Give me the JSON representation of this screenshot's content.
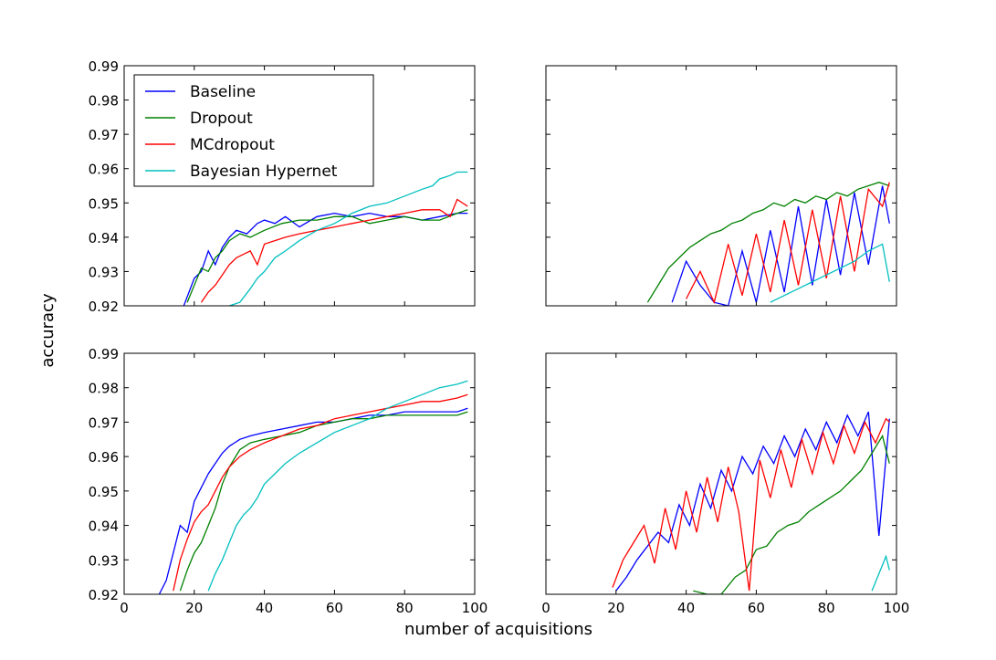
{
  "figure": {
    "ylabel": "accuracy",
    "xlabel": "number of acquisitions"
  },
  "legend": {
    "placement": "upper-left (top-left subplot)",
    "entries": [
      {
        "label": "Baseline",
        "color": "#0000ff"
      },
      {
        "label": "Dropout",
        "color": "#008000"
      },
      {
        "label": "MCdropout",
        "color": "#ff0000"
      },
      {
        "label": "Bayesian Hypernet",
        "color": "#00bfbf"
      }
    ]
  },
  "chart_data": [
    {
      "type": "line",
      "panel": "top-left",
      "xlim": [
        0,
        100
      ],
      "ylim": [
        0.92,
        0.99
      ],
      "yticks": [
        "0.92",
        "0.93",
        "0.94",
        "0.95",
        "0.96",
        "0.97",
        "0.98",
        "0.99"
      ],
      "xticks": [],
      "series": [
        {
          "name": "Baseline",
          "color": "#0000ff",
          "x": [
            17,
            20,
            22,
            24,
            26,
            28,
            30,
            32,
            35,
            38,
            40,
            43,
            46,
            50,
            55,
            60,
            65,
            70,
            75,
            80,
            85,
            90,
            95,
            98
          ],
          "y": [
            0.92,
            0.928,
            0.93,
            0.936,
            0.932,
            0.937,
            0.94,
            0.942,
            0.941,
            0.944,
            0.945,
            0.944,
            0.946,
            0.943,
            0.946,
            0.947,
            0.946,
            0.947,
            0.946,
            0.946,
            0.945,
            0.946,
            0.947,
            0.947
          ]
        },
        {
          "name": "Dropout",
          "color": "#008000",
          "x": [
            18,
            20,
            22,
            24,
            26,
            28,
            30,
            33,
            36,
            40,
            45,
            50,
            55,
            60,
            65,
            70,
            75,
            80,
            85,
            90,
            95,
            98
          ],
          "y": [
            0.921,
            0.926,
            0.931,
            0.93,
            0.934,
            0.936,
            0.939,
            0.941,
            0.94,
            0.942,
            0.944,
            0.945,
            0.945,
            0.946,
            0.946,
            0.944,
            0.945,
            0.946,
            0.945,
            0.945,
            0.947,
            0.948
          ]
        },
        {
          "name": "MCdropout",
          "color": "#ff0000",
          "x": [
            22,
            24,
            26,
            28,
            30,
            32,
            34,
            36,
            38,
            40,
            43,
            46,
            50,
            55,
            60,
            65,
            70,
            75,
            80,
            85,
            90,
            93,
            95,
            98
          ],
          "y": [
            0.921,
            0.924,
            0.926,
            0.929,
            0.932,
            0.934,
            0.935,
            0.936,
            0.932,
            0.938,
            0.939,
            0.94,
            0.941,
            0.942,
            0.943,
            0.944,
            0.945,
            0.946,
            0.947,
            0.948,
            0.948,
            0.946,
            0.951,
            0.949
          ]
        },
        {
          "name": "Bayesian Hypernet",
          "color": "#00bfbf",
          "x": [
            30,
            33,
            36,
            38,
            40,
            43,
            46,
            50,
            55,
            60,
            65,
            70,
            75,
            80,
            85,
            88,
            90,
            93,
            95,
            98
          ],
          "y": [
            0.92,
            0.921,
            0.925,
            0.928,
            0.93,
            0.934,
            0.936,
            0.939,
            0.942,
            0.944,
            0.947,
            0.949,
            0.95,
            0.952,
            0.954,
            0.955,
            0.957,
            0.958,
            0.959,
            0.959
          ]
        }
      ]
    },
    {
      "type": "line",
      "panel": "top-right",
      "xlim": [
        0,
        100
      ],
      "ylim": [
        0.92,
        0.99
      ],
      "yticks": [],
      "xticks": [],
      "series": [
        {
          "name": "Baseline",
          "color": "#0000ff",
          "x": [
            36,
            40,
            44,
            48,
            52,
            56,
            60,
            64,
            68,
            72,
            76,
            80,
            84,
            88,
            92,
            96,
            98
          ],
          "y": [
            0.921,
            0.933,
            0.926,
            0.921,
            0.92,
            0.936,
            0.921,
            0.942,
            0.924,
            0.949,
            0.926,
            0.951,
            0.929,
            0.953,
            0.932,
            0.955,
            0.944
          ]
        },
        {
          "name": "Dropout",
          "color": "#008000",
          "x": [
            29,
            32,
            35,
            38,
            41,
            44,
            47,
            50,
            53,
            56,
            59,
            62,
            65,
            68,
            71,
            74,
            77,
            80,
            83,
            86,
            89,
            92,
            95,
            98
          ],
          "y": [
            0.921,
            0.926,
            0.931,
            0.934,
            0.937,
            0.939,
            0.941,
            0.942,
            0.944,
            0.945,
            0.947,
            0.948,
            0.95,
            0.949,
            0.951,
            0.95,
            0.952,
            0.951,
            0.953,
            0.952,
            0.954,
            0.955,
            0.956,
            0.955
          ]
        },
        {
          "name": "MCdropout",
          "color": "#ff0000",
          "x": [
            40,
            44,
            48,
            52,
            56,
            60,
            64,
            68,
            72,
            76,
            80,
            84,
            88,
            92,
            96,
            98
          ],
          "y": [
            0.922,
            0.93,
            0.921,
            0.938,
            0.923,
            0.941,
            0.924,
            0.945,
            0.926,
            0.948,
            0.928,
            0.952,
            0.93,
            0.954,
            0.949,
            0.956
          ]
        },
        {
          "name": "Bayesian Hypernet",
          "color": "#00bfbf",
          "x": [
            64,
            68,
            72,
            76,
            80,
            84,
            88,
            92,
            96,
            98
          ],
          "y": [
            0.921,
            0.923,
            0.925,
            0.927,
            0.929,
            0.931,
            0.933,
            0.936,
            0.938,
            0.927
          ]
        }
      ]
    },
    {
      "type": "line",
      "panel": "bottom-left",
      "xlim": [
        0,
        100
      ],
      "ylim": [
        0.92,
        0.99
      ],
      "yticks": [
        "0.92",
        "0.93",
        "0.94",
        "0.95",
        "0.96",
        "0.97",
        "0.98",
        "0.99"
      ],
      "xticks": [
        "0",
        "20",
        "40",
        "60",
        "80",
        "100"
      ],
      "series": [
        {
          "name": "Baseline",
          "color": "#0000ff",
          "x": [
            10,
            12,
            14,
            16,
            18,
            20,
            22,
            24,
            26,
            28,
            30,
            33,
            36,
            40,
            45,
            50,
            55,
            60,
            65,
            70,
            75,
            80,
            85,
            90,
            95,
            98
          ],
          "y": [
            0.92,
            0.924,
            0.932,
            0.94,
            0.938,
            0.947,
            0.951,
            0.955,
            0.958,
            0.961,
            0.963,
            0.965,
            0.966,
            0.967,
            0.968,
            0.969,
            0.97,
            0.97,
            0.971,
            0.972,
            0.972,
            0.973,
            0.973,
            0.973,
            0.973,
            0.974
          ]
        },
        {
          "name": "Dropout",
          "color": "#008000",
          "x": [
            16,
            18,
            20,
            22,
            24,
            26,
            28,
            30,
            33,
            36,
            40,
            45,
            50,
            55,
            60,
            65,
            70,
            75,
            80,
            85,
            90,
            95,
            98
          ],
          "y": [
            0.921,
            0.927,
            0.932,
            0.935,
            0.94,
            0.945,
            0.952,
            0.957,
            0.962,
            0.964,
            0.965,
            0.966,
            0.967,
            0.969,
            0.97,
            0.971,
            0.971,
            0.972,
            0.972,
            0.972,
            0.972,
            0.972,
            0.973
          ]
        },
        {
          "name": "MCdropout",
          "color": "#ff0000",
          "x": [
            14,
            16,
            18,
            20,
            22,
            24,
            26,
            28,
            30,
            33,
            36,
            40,
            45,
            50,
            55,
            60,
            65,
            70,
            75,
            80,
            85,
            90,
            95,
            98
          ],
          "y": [
            0.921,
            0.93,
            0.936,
            0.941,
            0.944,
            0.946,
            0.95,
            0.954,
            0.957,
            0.96,
            0.962,
            0.964,
            0.966,
            0.968,
            0.969,
            0.971,
            0.972,
            0.973,
            0.974,
            0.975,
            0.976,
            0.976,
            0.977,
            0.978
          ]
        },
        {
          "name": "Bayesian Hypernet",
          "color": "#00bfbf",
          "x": [
            24,
            26,
            28,
            30,
            32,
            34,
            36,
            38,
            40,
            43,
            46,
            50,
            55,
            60,
            65,
            70,
            75,
            80,
            85,
            90,
            95,
            98
          ],
          "y": [
            0.921,
            0.926,
            0.93,
            0.935,
            0.94,
            0.943,
            0.945,
            0.948,
            0.952,
            0.955,
            0.958,
            0.961,
            0.964,
            0.967,
            0.969,
            0.971,
            0.974,
            0.976,
            0.978,
            0.98,
            0.981,
            0.982
          ]
        }
      ]
    },
    {
      "type": "line",
      "panel": "bottom-right",
      "xlim": [
        0,
        100
      ],
      "ylim": [
        0.92,
        0.99
      ],
      "yticks": [],
      "xticks": [
        "0",
        "20",
        "40",
        "60",
        "80",
        "100"
      ],
      "series": [
        {
          "name": "Baseline",
          "color": "#0000ff",
          "x": [
            20,
            23,
            26,
            29,
            32,
            35,
            38,
            41,
            44,
            47,
            50,
            53,
            56,
            59,
            62,
            65,
            68,
            71,
            74,
            77,
            80,
            83,
            86,
            89,
            92,
            95,
            98
          ],
          "y": [
            0.921,
            0.925,
            0.93,
            0.934,
            0.938,
            0.935,
            0.946,
            0.94,
            0.952,
            0.945,
            0.956,
            0.95,
            0.96,
            0.955,
            0.963,
            0.958,
            0.966,
            0.96,
            0.968,
            0.962,
            0.97,
            0.964,
            0.972,
            0.966,
            0.973,
            0.937,
            0.971
          ]
        },
        {
          "name": "Dropout",
          "color": "#008000",
          "x": [
            42,
            46,
            50,
            54,
            57,
            60,
            63,
            66,
            69,
            72,
            75,
            78,
            81,
            84,
            87,
            90,
            93,
            96,
            98
          ],
          "y": [
            0.921,
            0.92,
            0.92,
            0.925,
            0.927,
            0.933,
            0.934,
            0.938,
            0.94,
            0.941,
            0.944,
            0.946,
            0.948,
            0.95,
            0.953,
            0.956,
            0.961,
            0.966,
            0.958
          ]
        },
        {
          "name": "MCdropout",
          "color": "#ff0000",
          "x": [
            19,
            22,
            25,
            28,
            31,
            34,
            37,
            40,
            43,
            46,
            49,
            52,
            55,
            58,
            61,
            64,
            67,
            70,
            73,
            76,
            79,
            82,
            85,
            88,
            91,
            94,
            97,
            98
          ],
          "y": [
            0.922,
            0.93,
            0.935,
            0.94,
            0.929,
            0.945,
            0.933,
            0.95,
            0.938,
            0.954,
            0.941,
            0.957,
            0.944,
            0.921,
            0.959,
            0.948,
            0.962,
            0.951,
            0.965,
            0.955,
            0.967,
            0.958,
            0.969,
            0.961,
            0.97,
            0.964,
            0.971,
            0.97
          ]
        },
        {
          "name": "Bayesian Hypernet",
          "color": "#00bfbf",
          "x": [
            93,
            95,
            97,
            98
          ],
          "y": [
            0.921,
            0.926,
            0.931,
            0.927
          ]
        }
      ]
    }
  ]
}
